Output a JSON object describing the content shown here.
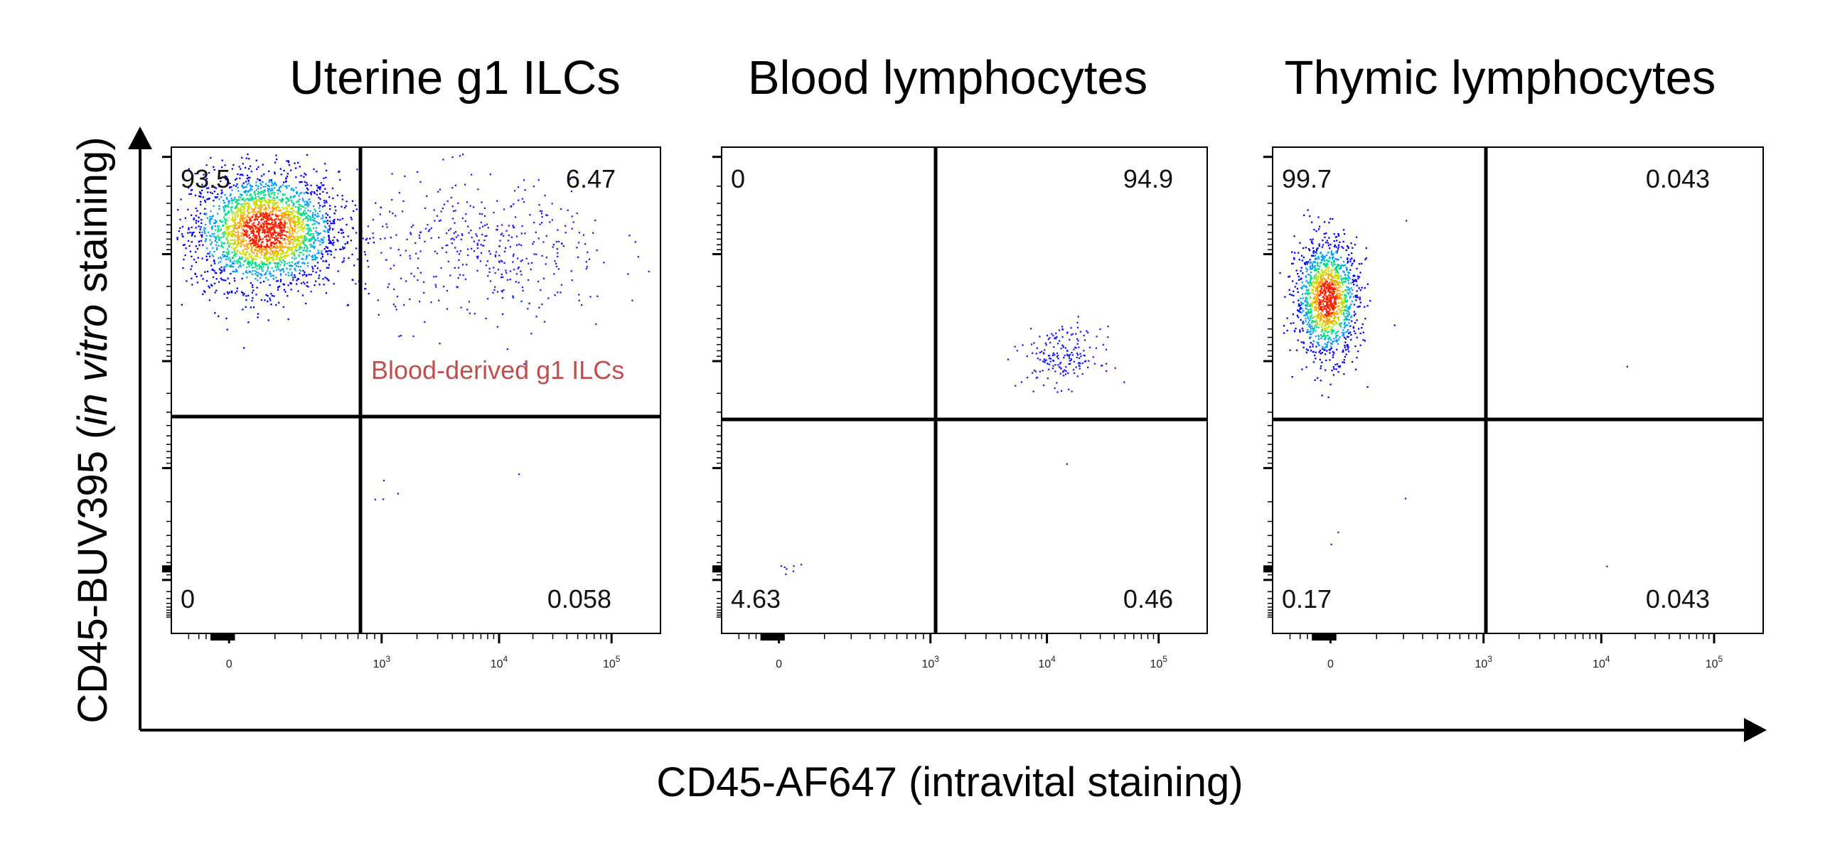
{
  "chart_data": [
    {
      "type": "scatter",
      "title": "Uterine g1 ILCs",
      "quadrants": {
        "top_left": "93.5",
        "top_right": "6.47",
        "bottom_left": "0",
        "bottom_right": "0.058"
      },
      "annotation": "Blood-derived g1 ILCs",
      "x_ticks": [
        {
          "base": "0",
          "exp": ""
        },
        {
          "base": "10",
          "exp": "3"
        },
        {
          "base": "10",
          "exp": "4"
        },
        {
          "base": "10",
          "exp": "5"
        }
      ],
      "gate": {
        "x": 0.38,
        "y": 0.56
      },
      "populations": [
        {
          "cx": 0.19,
          "cy": 0.83,
          "sx": 0.075,
          "sy": 0.06,
          "n": 2600,
          "dense": true
        },
        {
          "cx": 0.64,
          "cy": 0.79,
          "sx": 0.13,
          "sy": 0.075,
          "n": 430,
          "dense": false
        },
        {
          "cx": 0.41,
          "cy": 0.31,
          "sx": 0.02,
          "sy": 0.05,
          "n": 4,
          "dense": false
        },
        {
          "cx": 0.71,
          "cy": 0.33,
          "sx": 0.001,
          "sy": 0.001,
          "n": 1,
          "dense": false
        }
      ]
    },
    {
      "type": "scatter",
      "title": "Blood lymphocytes",
      "quadrants": {
        "top_left": "0",
        "top_right": "94.9",
        "bottom_left": "4.63",
        "bottom_right": "0.46"
      },
      "x_ticks": [
        {
          "base": "0",
          "exp": ""
        },
        {
          "base": "10",
          "exp": "3"
        },
        {
          "base": "10",
          "exp": "4"
        },
        {
          "base": "10",
          "exp": "5"
        }
      ],
      "gate": {
        "x": 0.44,
        "y": 0.55
      },
      "populations": [
        {
          "cx": 0.7,
          "cy": 0.57,
          "sx": 0.04,
          "sy": 0.03,
          "n": 190,
          "dense": false
        },
        {
          "cx": 0.14,
          "cy": 0.14,
          "sx": 0.02,
          "sy": 0.01,
          "n": 7,
          "dense": false
        },
        {
          "cx": 0.71,
          "cy": 0.35,
          "sx": 0.001,
          "sy": 0.001,
          "n": 1,
          "dense": false
        }
      ]
    },
    {
      "type": "scatter",
      "title": "Thymic lymphocytes",
      "quadrants": {
        "top_left": "99.7",
        "top_right": "0.043",
        "bottom_left": "0.17",
        "bottom_right": "0.043"
      },
      "x_ticks": [
        {
          "base": "0",
          "exp": ""
        },
        {
          "base": "10",
          "exp": "3"
        },
        {
          "base": "10",
          "exp": "4"
        },
        {
          "base": "10",
          "exp": "5"
        }
      ],
      "gate": {
        "x": 0.43,
        "y": 0.55
      },
      "populations": [
        {
          "cx": 0.11,
          "cy": 0.69,
          "sx": 0.032,
          "sy": 0.06,
          "n": 1400,
          "dense": true
        },
        {
          "cx": 0.27,
          "cy": 0.85,
          "sx": 0.001,
          "sy": 0.001,
          "n": 1,
          "dense": false
        },
        {
          "cx": 0.72,
          "cy": 0.55,
          "sx": 0.001,
          "sy": 0.001,
          "n": 1,
          "dense": false
        },
        {
          "cx": 0.12,
          "cy": 0.2,
          "sx": 0.01,
          "sy": 0.04,
          "n": 2,
          "dense": false
        },
        {
          "cx": 0.27,
          "cy": 0.28,
          "sx": 0.001,
          "sy": 0.001,
          "n": 1,
          "dense": false
        },
        {
          "cx": 0.68,
          "cy": 0.14,
          "sx": 0.001,
          "sy": 0.001,
          "n": 1,
          "dense": false
        }
      ]
    }
  ],
  "axes": {
    "x_label": "CD45-AF647 (intravital staining)",
    "y_label_prefix": "CD45-BUV395 (",
    "y_label_italic": "in vitro",
    "y_label_suffix": " staining)"
  },
  "colors": {
    "sparse": "#1f1fff",
    "density_scale": [
      "#0000ff",
      "#00a0ff",
      "#00dd88",
      "#c8e000",
      "#ffa000",
      "#ff2000"
    ],
    "annotation": "#c0504d"
  }
}
